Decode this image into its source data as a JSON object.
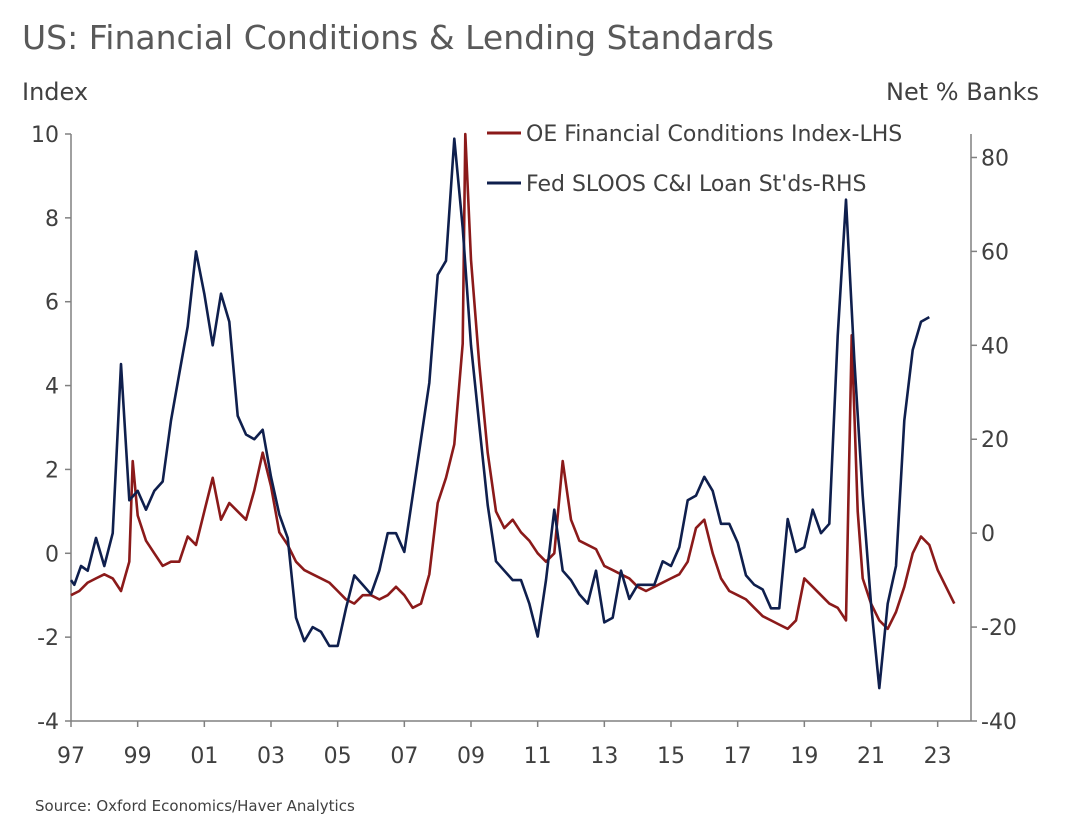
{
  "header": {
    "title": "US: Financial Conditions & Lending Standards",
    "left_axis_label": "Index",
    "right_axis_label": "Net % Banks"
  },
  "footer": {
    "source": "Source: Oxford Economics/Haver Analytics"
  },
  "colors": {
    "fci": "#8B1A1A",
    "sloos": "#0F1F4D",
    "axis": "#808080",
    "text": "#404040"
  },
  "chart_data": {
    "type": "line",
    "title": "US: Financial Conditions & Lending Standards",
    "x_tick_labels": [
      "97",
      "99",
      "01",
      "03",
      "05",
      "07",
      "09",
      "11",
      "13",
      "15",
      "17",
      "19",
      "21",
      "23"
    ],
    "x_tick_years": [
      1997,
      1999,
      2001,
      2003,
      2005,
      2007,
      2009,
      2011,
      2013,
      2015,
      2017,
      2019,
      2021,
      2023
    ],
    "xlim": [
      1997,
      2024
    ],
    "y_left": {
      "label": "Index",
      "ylim": [
        -4,
        10
      ],
      "ticks": [
        -4,
        -2,
        0,
        2,
        4,
        6,
        8,
        10
      ]
    },
    "y_right": {
      "label": "Net % Banks",
      "ylim": [
        -40,
        85
      ],
      "ticks": [
        -40,
        -20,
        0,
        20,
        40,
        60,
        80
      ]
    },
    "grid": false,
    "legend": {
      "placement": "top-right"
    },
    "series": [
      {
        "name": "OE Financial Conditions Index-LHS",
        "axis": "left",
        "color": "#8B1A1A",
        "points": [
          [
            1997.0,
            -1.0
          ],
          [
            1997.25,
            -0.9
          ],
          [
            1997.5,
            -0.7
          ],
          [
            1997.75,
            -0.6
          ],
          [
            1998.0,
            -0.5
          ],
          [
            1998.25,
            -0.6
          ],
          [
            1998.5,
            -0.9
          ],
          [
            1998.75,
            -0.2
          ],
          [
            1998.85,
            2.2
          ],
          [
            1999.0,
            0.9
          ],
          [
            1999.25,
            0.3
          ],
          [
            1999.5,
            0.0
          ],
          [
            1999.75,
            -0.3
          ],
          [
            2000.0,
            -0.2
          ],
          [
            2000.25,
            -0.2
          ],
          [
            2000.5,
            0.4
          ],
          [
            2000.75,
            0.2
          ],
          [
            2001.0,
            1.0
          ],
          [
            2001.25,
            1.8
          ],
          [
            2001.5,
            0.8
          ],
          [
            2001.75,
            1.2
          ],
          [
            2002.0,
            1.0
          ],
          [
            2002.25,
            0.8
          ],
          [
            2002.5,
            1.5
          ],
          [
            2002.75,
            2.4
          ],
          [
            2003.0,
            1.6
          ],
          [
            2003.25,
            0.5
          ],
          [
            2003.5,
            0.2
          ],
          [
            2003.75,
            -0.2
          ],
          [
            2004.0,
            -0.4
          ],
          [
            2004.25,
            -0.5
          ],
          [
            2004.5,
            -0.6
          ],
          [
            2004.75,
            -0.7
          ],
          [
            2005.0,
            -0.9
          ],
          [
            2005.25,
            -1.1
          ],
          [
            2005.5,
            -1.2
          ],
          [
            2005.75,
            -1.0
          ],
          [
            2006.0,
            -1.0
          ],
          [
            2006.25,
            -1.1
          ],
          [
            2006.5,
            -1.0
          ],
          [
            2006.75,
            -0.8
          ],
          [
            2007.0,
            -1.0
          ],
          [
            2007.25,
            -1.3
          ],
          [
            2007.5,
            -1.2
          ],
          [
            2007.75,
            -0.5
          ],
          [
            2008.0,
            1.2
          ],
          [
            2008.25,
            1.8
          ],
          [
            2008.5,
            2.6
          ],
          [
            2008.75,
            5.0
          ],
          [
            2008.83,
            10.0
          ],
          [
            2009.0,
            7.0
          ],
          [
            2009.25,
            4.5
          ],
          [
            2009.5,
            2.4
          ],
          [
            2009.75,
            1.0
          ],
          [
            2010.0,
            0.6
          ],
          [
            2010.25,
            0.8
          ],
          [
            2010.5,
            0.5
          ],
          [
            2010.75,
            0.3
          ],
          [
            2011.0,
            0.0
          ],
          [
            2011.25,
            -0.2
          ],
          [
            2011.5,
            0.0
          ],
          [
            2011.75,
            2.2
          ],
          [
            2012.0,
            0.8
          ],
          [
            2012.25,
            0.3
          ],
          [
            2012.5,
            0.2
          ],
          [
            2012.75,
            0.1
          ],
          [
            2013.0,
            -0.3
          ],
          [
            2013.25,
            -0.4
          ],
          [
            2013.5,
            -0.5
          ],
          [
            2013.75,
            -0.6
          ],
          [
            2014.0,
            -0.8
          ],
          [
            2014.25,
            -0.9
          ],
          [
            2014.5,
            -0.8
          ],
          [
            2014.75,
            -0.7
          ],
          [
            2015.0,
            -0.6
          ],
          [
            2015.25,
            -0.5
          ],
          [
            2015.5,
            -0.2
          ],
          [
            2015.75,
            0.6
          ],
          [
            2016.0,
            0.8
          ],
          [
            2016.25,
            0.0
          ],
          [
            2016.5,
            -0.6
          ],
          [
            2016.75,
            -0.9
          ],
          [
            2017.0,
            -1.0
          ],
          [
            2017.25,
            -1.1
          ],
          [
            2017.5,
            -1.3
          ],
          [
            2017.75,
            -1.5
          ],
          [
            2018.0,
            -1.6
          ],
          [
            2018.25,
            -1.7
          ],
          [
            2018.5,
            -1.8
          ],
          [
            2018.75,
            -1.6
          ],
          [
            2019.0,
            -0.6
          ],
          [
            2019.25,
            -0.8
          ],
          [
            2019.5,
            -1.0
          ],
          [
            2019.75,
            -1.2
          ],
          [
            2020.0,
            -1.3
          ],
          [
            2020.25,
            -1.6
          ],
          [
            2020.42,
            5.2
          ],
          [
            2020.6,
            1.0
          ],
          [
            2020.75,
            -0.6
          ],
          [
            2021.0,
            -1.2
          ],
          [
            2021.25,
            -1.6
          ],
          [
            2021.5,
            -1.8
          ],
          [
            2021.75,
            -1.4
          ],
          [
            2022.0,
            -0.8
          ],
          [
            2022.25,
            0.0
          ],
          [
            2022.5,
            0.4
          ],
          [
            2022.75,
            0.2
          ],
          [
            2023.0,
            -0.4
          ],
          [
            2023.25,
            -0.8
          ],
          [
            2023.5,
            -1.2
          ]
        ]
      },
      {
        "name": "Fed SLOOS C&I Loan St'ds-RHS",
        "axis": "right",
        "color": "#0F1F4D",
        "points": [
          [
            1997.0,
            -10
          ],
          [
            1997.1,
            -11
          ],
          [
            1997.3,
            -7
          ],
          [
            1997.5,
            -8
          ],
          [
            1997.75,
            -1
          ],
          [
            1998.0,
            -7
          ],
          [
            1998.25,
            0
          ],
          [
            1998.5,
            36
          ],
          [
            1998.75,
            7
          ],
          [
            1999.0,
            9
          ],
          [
            1999.25,
            5
          ],
          [
            1999.5,
            9
          ],
          [
            1999.75,
            11
          ],
          [
            2000.0,
            24
          ],
          [
            2000.25,
            34
          ],
          [
            2000.5,
            44
          ],
          [
            2000.75,
            60
          ],
          [
            2001.0,
            51
          ],
          [
            2001.25,
            40
          ],
          [
            2001.5,
            51
          ],
          [
            2001.75,
            45
          ],
          [
            2002.0,
            25
          ],
          [
            2002.25,
            21
          ],
          [
            2002.5,
            20
          ],
          [
            2002.75,
            22
          ],
          [
            2003.0,
            12
          ],
          [
            2003.25,
            4
          ],
          [
            2003.5,
            -1
          ],
          [
            2003.75,
            -18
          ],
          [
            2004.0,
            -23
          ],
          [
            2004.25,
            -20
          ],
          [
            2004.5,
            -21
          ],
          [
            2004.75,
            -24
          ],
          [
            2005.0,
            -24
          ],
          [
            2005.25,
            -16
          ],
          [
            2005.5,
            -9
          ],
          [
            2005.75,
            -11
          ],
          [
            2006.0,
            -13
          ],
          [
            2006.25,
            -8
          ],
          [
            2006.5,
            0
          ],
          [
            2006.75,
            0
          ],
          [
            2007.0,
            -4
          ],
          [
            2007.25,
            8
          ],
          [
            2007.5,
            20
          ],
          [
            2007.75,
            32
          ],
          [
            2008.0,
            55
          ],
          [
            2008.25,
            58
          ],
          [
            2008.5,
            84
          ],
          [
            2008.75,
            65
          ],
          [
            2009.0,
            40
          ],
          [
            2009.25,
            23
          ],
          [
            2009.5,
            6
          ],
          [
            2009.75,
            -6
          ],
          [
            2010.0,
            -8
          ],
          [
            2010.25,
            -10
          ],
          [
            2010.5,
            -10
          ],
          [
            2010.75,
            -15
          ],
          [
            2011.0,
            -22
          ],
          [
            2011.25,
            -10
          ],
          [
            2011.5,
            5
          ],
          [
            2011.75,
            -8
          ],
          [
            2012.0,
            -10
          ],
          [
            2012.25,
            -13
          ],
          [
            2012.5,
            -15
          ],
          [
            2012.75,
            -8
          ],
          [
            2013.0,
            -19
          ],
          [
            2013.25,
            -18
          ],
          [
            2013.5,
            -8
          ],
          [
            2013.75,
            -14
          ],
          [
            2014.0,
            -11
          ],
          [
            2014.25,
            -11
          ],
          [
            2014.5,
            -11
          ],
          [
            2014.75,
            -6
          ],
          [
            2015.0,
            -7
          ],
          [
            2015.25,
            -3
          ],
          [
            2015.5,
            7
          ],
          [
            2015.75,
            8
          ],
          [
            2016.0,
            12
          ],
          [
            2016.25,
            9
          ],
          [
            2016.5,
            2
          ],
          [
            2016.75,
            2
          ],
          [
            2017.0,
            -2
          ],
          [
            2017.25,
            -9
          ],
          [
            2017.5,
            -11
          ],
          [
            2017.75,
            -12
          ],
          [
            2018.0,
            -16
          ],
          [
            2018.25,
            -16
          ],
          [
            2018.5,
            3
          ],
          [
            2018.75,
            -4
          ],
          [
            2019.0,
            -3
          ],
          [
            2019.25,
            5
          ],
          [
            2019.5,
            0
          ],
          [
            2019.75,
            2
          ],
          [
            2020.0,
            42
          ],
          [
            2020.25,
            71
          ],
          [
            2020.5,
            37
          ],
          [
            2020.75,
            8
          ],
          [
            2021.0,
            -15
          ],
          [
            2021.25,
            -33
          ],
          [
            2021.5,
            -15
          ],
          [
            2021.75,
            -7
          ],
          [
            2022.0,
            24
          ],
          [
            2022.25,
            39
          ],
          [
            2022.5,
            45
          ],
          [
            2022.75,
            46
          ]
        ]
      }
    ]
  }
}
